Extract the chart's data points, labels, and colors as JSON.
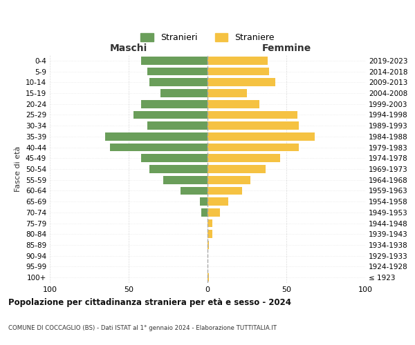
{
  "age_groups": [
    "100+",
    "95-99",
    "90-94",
    "85-89",
    "80-84",
    "75-79",
    "70-74",
    "65-69",
    "60-64",
    "55-59",
    "50-54",
    "45-49",
    "40-44",
    "35-39",
    "30-34",
    "25-29",
    "20-24",
    "15-19",
    "10-14",
    "5-9",
    "0-4"
  ],
  "birth_years": [
    "≤ 1923",
    "1924-1928",
    "1929-1933",
    "1934-1938",
    "1939-1943",
    "1944-1948",
    "1949-1953",
    "1954-1958",
    "1959-1963",
    "1964-1968",
    "1969-1973",
    "1974-1978",
    "1979-1983",
    "1984-1988",
    "1989-1993",
    "1994-1998",
    "1999-2003",
    "2004-2008",
    "2009-2013",
    "2014-2018",
    "2019-2023"
  ],
  "males": [
    0,
    0,
    0,
    0,
    0,
    0,
    4,
    5,
    17,
    28,
    37,
    42,
    62,
    65,
    38,
    47,
    42,
    30,
    37,
    38,
    42
  ],
  "females": [
    1,
    0,
    0,
    1,
    3,
    3,
    8,
    13,
    22,
    27,
    37,
    46,
    58,
    68,
    58,
    57,
    33,
    25,
    43,
    39,
    38
  ],
  "male_color": "#6a9e5a",
  "female_color": "#f5c242",
  "male_label": "Stranieri",
  "female_label": "Straniere",
  "title": "Popolazione per cittadinanza straniera per età e sesso - 2024",
  "subtitle": "COMUNE DI COCCAGLIO (BS) - Dati ISTAT al 1° gennaio 2024 - Elaborazione TUTTITALIA.IT",
  "xlabel_left": "Maschi",
  "xlabel_right": "Femmine",
  "ylabel_left": "Fasce di età",
  "xlim": 100,
  "bg_color": "#ffffff",
  "grid_color": "#cccccc"
}
